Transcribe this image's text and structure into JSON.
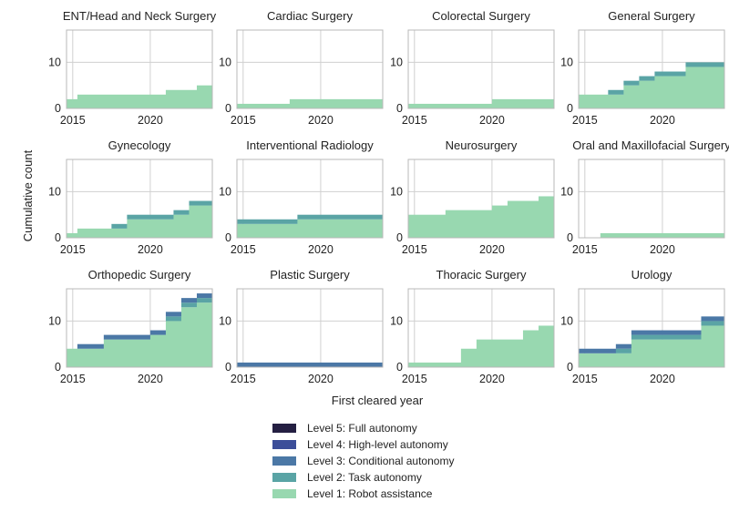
{
  "chart_data": {
    "type": "area",
    "step": true,
    "stacked": true,
    "ylabel": "Cumulative count",
    "xlabel": "First cleared year",
    "xlim": [
      2014.6,
      2024
    ],
    "ylim": [
      0,
      17
    ],
    "x_ticks": [
      2015,
      2020
    ],
    "y_ticks": [
      0,
      10
    ],
    "grid": true,
    "legend_position": "bottom-center",
    "levels": [
      {
        "name": "Level 5: Full autonomy",
        "color": "#241f42"
      },
      {
        "name": "Level 4: High-level autonomy",
        "color": "#3c4e99"
      },
      {
        "name": "Level 3: Conditional autonomy",
        "color": "#4b78a6"
      },
      {
        "name": "Level 2: Task autonomy",
        "color": "#5aa4a5"
      },
      {
        "name": "Level 1: Robot assistance",
        "color": "#98d8b0"
      }
    ],
    "panels": [
      {
        "title": "ENT/Head and Neck Surgery",
        "steps": [
          {
            "start": 2014.6,
            "end": 2015.3,
            "l1": 2,
            "l2": 0,
            "l3": 0
          },
          {
            "start": 2015.3,
            "end": 2021.0,
            "l1": 3,
            "l2": 0,
            "l3": 0
          },
          {
            "start": 2021.0,
            "end": 2023.0,
            "l1": 4,
            "l2": 0,
            "l3": 0
          },
          {
            "start": 2023.0,
            "end": 2024.0,
            "l1": 5,
            "l2": 0,
            "l3": 0
          }
        ]
      },
      {
        "title": "Cardiac Surgery",
        "steps": [
          {
            "start": 2014.6,
            "end": 2018.0,
            "l1": 1,
            "l2": 0,
            "l3": 0
          },
          {
            "start": 2018.0,
            "end": 2024.0,
            "l1": 2,
            "l2": 0,
            "l3": 0
          }
        ]
      },
      {
        "title": "Colorectal Surgery",
        "steps": [
          {
            "start": 2014.6,
            "end": 2020.0,
            "l1": 1,
            "l2": 0,
            "l3": 0
          },
          {
            "start": 2020.0,
            "end": 2024.0,
            "l1": 2,
            "l2": 0,
            "l3": 0
          }
        ]
      },
      {
        "title": "General Surgery",
        "steps": [
          {
            "start": 2014.6,
            "end": 2016.5,
            "l1": 3,
            "l2": 0,
            "l3": 0
          },
          {
            "start": 2016.5,
            "end": 2017.5,
            "l1": 3,
            "l2": 1,
            "l3": 0
          },
          {
            "start": 2017.5,
            "end": 2018.5,
            "l1": 5,
            "l2": 1,
            "l3": 0
          },
          {
            "start": 2018.5,
            "end": 2019.5,
            "l1": 6,
            "l2": 1,
            "l3": 0
          },
          {
            "start": 2019.5,
            "end": 2021.5,
            "l1": 7,
            "l2": 1,
            "l3": 0
          },
          {
            "start": 2021.5,
            "end": 2022.5,
            "l1": 9,
            "l2": 1,
            "l3": 0
          },
          {
            "start": 2022.5,
            "end": 2024.0,
            "l1": 9,
            "l2": 1,
            "l3": 0
          }
        ]
      },
      {
        "title": "Gynecology",
        "steps": [
          {
            "start": 2014.6,
            "end": 2015.3,
            "l1": 1,
            "l2": 0,
            "l3": 0
          },
          {
            "start": 2015.3,
            "end": 2017.5,
            "l1": 2,
            "l2": 0,
            "l3": 0
          },
          {
            "start": 2017.5,
            "end": 2018.5,
            "l1": 2,
            "l2": 1,
            "l3": 0
          },
          {
            "start": 2018.5,
            "end": 2021.5,
            "l1": 4,
            "l2": 1,
            "l3": 0
          },
          {
            "start": 2021.5,
            "end": 2022.5,
            "l1": 5,
            "l2": 1,
            "l3": 0
          },
          {
            "start": 2022.5,
            "end": 2024.0,
            "l1": 7,
            "l2": 1,
            "l3": 0
          }
        ]
      },
      {
        "title": "Interventional Radiology",
        "steps": [
          {
            "start": 2014.6,
            "end": 2018.5,
            "l1": 3,
            "l2": 1,
            "l3": 0
          },
          {
            "start": 2018.5,
            "end": 2024.0,
            "l1": 4,
            "l2": 1,
            "l3": 0
          }
        ]
      },
      {
        "title": "Neurosurgery",
        "steps": [
          {
            "start": 2014.6,
            "end": 2017.0,
            "l1": 5,
            "l2": 0,
            "l3": 0
          },
          {
            "start": 2017.0,
            "end": 2020.0,
            "l1": 6,
            "l2": 0,
            "l3": 0
          },
          {
            "start": 2020.0,
            "end": 2021.0,
            "l1": 7,
            "l2": 0,
            "l3": 0
          },
          {
            "start": 2021.0,
            "end": 2023.0,
            "l1": 8,
            "l2": 0,
            "l3": 0
          },
          {
            "start": 2023.0,
            "end": 2024.0,
            "l1": 9,
            "l2": 0,
            "l3": 0
          }
        ]
      },
      {
        "title": "Oral and Maxillofacial Surgery",
        "steps": [
          {
            "start": 2016.0,
            "end": 2024.0,
            "l1": 1,
            "l2": 0,
            "l3": 0
          }
        ]
      },
      {
        "title": "Orthopedic Surgery",
        "steps": [
          {
            "start": 2014.6,
            "end": 2015.3,
            "l1": 4,
            "l2": 0,
            "l3": 0
          },
          {
            "start": 2015.3,
            "end": 2017.0,
            "l1": 4,
            "l2": 0,
            "l3": 1
          },
          {
            "start": 2017.0,
            "end": 2020.0,
            "l1": 6,
            "l2": 0,
            "l3": 1
          },
          {
            "start": 2020.0,
            "end": 2021.0,
            "l1": 7,
            "l2": 0,
            "l3": 1
          },
          {
            "start": 2021.0,
            "end": 2022.0,
            "l1": 10,
            "l2": 1,
            "l3": 1
          },
          {
            "start": 2022.0,
            "end": 2023.0,
            "l1": 13,
            "l2": 1,
            "l3": 1
          },
          {
            "start": 2023.0,
            "end": 2024.0,
            "l1": 14,
            "l2": 1,
            "l3": 1
          }
        ]
      },
      {
        "title": "Plastic Surgery",
        "steps": [
          {
            "start": 2014.6,
            "end": 2024.0,
            "l1": 0,
            "l2": 0,
            "l3": 1
          }
        ]
      },
      {
        "title": "Thoracic Surgery",
        "steps": [
          {
            "start": 2014.6,
            "end": 2018.0,
            "l1": 1,
            "l2": 0,
            "l3": 0
          },
          {
            "start": 2018.0,
            "end": 2019.0,
            "l1": 4,
            "l2": 0,
            "l3": 0
          },
          {
            "start": 2019.0,
            "end": 2022.0,
            "l1": 6,
            "l2": 0,
            "l3": 0
          },
          {
            "start": 2022.0,
            "end": 2023.0,
            "l1": 8,
            "l2": 0,
            "l3": 0
          },
          {
            "start": 2023.0,
            "end": 2024.0,
            "l1": 9,
            "l2": 0,
            "l3": 0
          }
        ]
      },
      {
        "title": "Urology",
        "steps": [
          {
            "start": 2014.6,
            "end": 2017.0,
            "l1": 3,
            "l2": 0,
            "l3": 1
          },
          {
            "start": 2017.0,
            "end": 2018.0,
            "l1": 3,
            "l2": 1,
            "l3": 1
          },
          {
            "start": 2018.0,
            "end": 2022.5,
            "l1": 6,
            "l2": 1,
            "l3": 1
          },
          {
            "start": 2022.5,
            "end": 2024.0,
            "l1": 9,
            "l2": 1,
            "l3": 1
          }
        ]
      }
    ]
  }
}
